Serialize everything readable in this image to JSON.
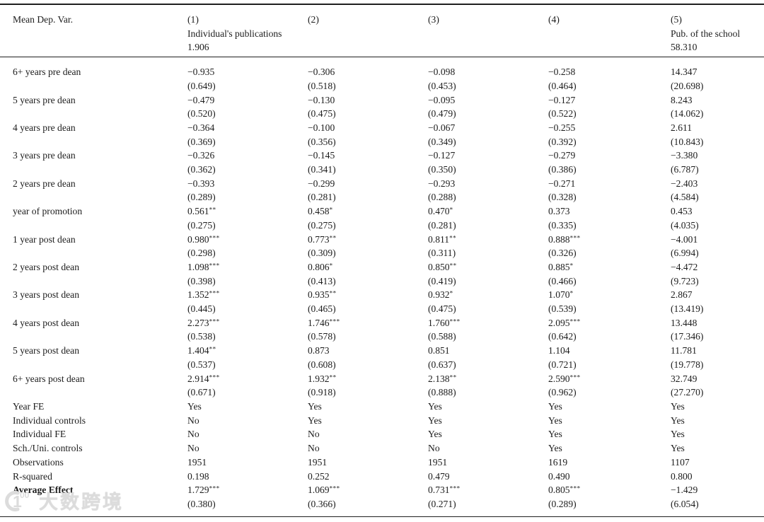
{
  "watermark": {
    "logo_digit": "1",
    "logo_zeros": "00",
    "text": "大数跨境"
  },
  "table": {
    "header": {
      "row_label": "Mean Dep. Var.",
      "columns": [
        {
          "num": "(1)",
          "dep_var": "Individual's publications",
          "mean": "1.906"
        },
        {
          "num": "(2)",
          "dep_var": "",
          "mean": ""
        },
        {
          "num": "(3)",
          "dep_var": "",
          "mean": ""
        },
        {
          "num": "(4)",
          "dep_var": "",
          "mean": ""
        },
        {
          "num": "(5)",
          "dep_var": "Pub. of the school",
          "mean": "58.310"
        }
      ]
    },
    "coef_rows": [
      {
        "label": "6+ years pre dean",
        "cells": [
          {
            "coef": "−0.935",
            "stars": "",
            "se": "(0.649)"
          },
          {
            "coef": "−0.306",
            "stars": "",
            "se": "(0.518)"
          },
          {
            "coef": "−0.098",
            "stars": "",
            "se": "(0.453)"
          },
          {
            "coef": "−0.258",
            "stars": "",
            "se": "(0.464)"
          },
          {
            "coef": "14.347",
            "stars": "",
            "se": "(20.698)"
          }
        ]
      },
      {
        "label": "5 years pre dean",
        "cells": [
          {
            "coef": "−0.479",
            "stars": "",
            "se": "(0.520)"
          },
          {
            "coef": "−0.130",
            "stars": "",
            "se": "(0.475)"
          },
          {
            "coef": "−0.095",
            "stars": "",
            "se": "(0.479)"
          },
          {
            "coef": "−0.127",
            "stars": "",
            "se": "(0.522)"
          },
          {
            "coef": "8.243",
            "stars": "",
            "se": "(14.062)"
          }
        ]
      },
      {
        "label": "4 years pre dean",
        "cells": [
          {
            "coef": "−0.364",
            "stars": "",
            "se": "(0.369)"
          },
          {
            "coef": "−0.100",
            "stars": "",
            "se": "(0.356)"
          },
          {
            "coef": "−0.067",
            "stars": "",
            "se": "(0.349)"
          },
          {
            "coef": "−0.255",
            "stars": "",
            "se": "(0.392)"
          },
          {
            "coef": "2.611",
            "stars": "",
            "se": "(10.843)"
          }
        ]
      },
      {
        "label": "3 years pre dean",
        "cells": [
          {
            "coef": "−0.326",
            "stars": "",
            "se": "(0.362)"
          },
          {
            "coef": "−0.145",
            "stars": "",
            "se": "(0.341)"
          },
          {
            "coef": "−0.127",
            "stars": "",
            "se": "(0.350)"
          },
          {
            "coef": "−0.279",
            "stars": "",
            "se": "(0.386)"
          },
          {
            "coef": "−3.380",
            "stars": "",
            "se": "(6.787)"
          }
        ]
      },
      {
        "label": "2 years pre dean",
        "cells": [
          {
            "coef": "−0.393",
            "stars": "",
            "se": "(0.289)"
          },
          {
            "coef": "−0.299",
            "stars": "",
            "se": "(0.281)"
          },
          {
            "coef": "−0.293",
            "stars": "",
            "se": "(0.288)"
          },
          {
            "coef": "−0.271",
            "stars": "",
            "se": "(0.328)"
          },
          {
            "coef": "−2.403",
            "stars": "",
            "se": "(4.584)"
          }
        ]
      },
      {
        "label": "year of promotion",
        "cells": [
          {
            "coef": "0.561",
            "stars": "**",
            "se": "(0.275)"
          },
          {
            "coef": "0.458",
            "stars": "*",
            "se": "(0.275)"
          },
          {
            "coef": "0.470",
            "stars": "*",
            "se": "(0.281)"
          },
          {
            "coef": "0.373",
            "stars": "",
            "se": "(0.335)"
          },
          {
            "coef": "0.453",
            "stars": "",
            "se": "(4.035)"
          }
        ]
      },
      {
        "label": "1 year post dean",
        "cells": [
          {
            "coef": "0.980",
            "stars": "***",
            "se": "(0.298)"
          },
          {
            "coef": "0.773",
            "stars": "**",
            "se": "(0.309)"
          },
          {
            "coef": "0.811",
            "stars": "**",
            "se": "(0.311)"
          },
          {
            "coef": "0.888",
            "stars": "***",
            "se": "(0.326)"
          },
          {
            "coef": "−4.001",
            "stars": "",
            "se": "(6.994)"
          }
        ]
      },
      {
        "label": "2 years post dean",
        "cells": [
          {
            "coef": "1.098",
            "stars": "***",
            "se": "(0.398)"
          },
          {
            "coef": "0.806",
            "stars": "*",
            "se": "(0.413)"
          },
          {
            "coef": "0.850",
            "stars": "**",
            "se": "(0.419)"
          },
          {
            "coef": "0.885",
            "stars": "*",
            "se": "(0.466)"
          },
          {
            "coef": "−4.472",
            "stars": "",
            "se": "(9.723)"
          }
        ]
      },
      {
        "label": "3 years post dean",
        "cells": [
          {
            "coef": "1.352",
            "stars": "***",
            "se": "(0.445)"
          },
          {
            "coef": "0.935",
            "stars": "**",
            "se": "(0.465)"
          },
          {
            "coef": "0.932",
            "stars": "*",
            "se": "(0.475)"
          },
          {
            "coef": "1.070",
            "stars": "*",
            "se": "(0.539)"
          },
          {
            "coef": "2.867",
            "stars": "",
            "se": "(13.419)"
          }
        ]
      },
      {
        "label": "4 years post dean",
        "cells": [
          {
            "coef": "2.273",
            "stars": "***",
            "se": "(0.538)"
          },
          {
            "coef": "1.746",
            "stars": "***",
            "se": "(0.578)"
          },
          {
            "coef": "1.760",
            "stars": "***",
            "se": "(0.588)"
          },
          {
            "coef": "2.095",
            "stars": "***",
            "se": "(0.642)"
          },
          {
            "coef": "13.448",
            "stars": "",
            "se": "(17.346)"
          }
        ]
      },
      {
        "label": "5 years post dean",
        "cells": [
          {
            "coef": "1.404",
            "stars": "**",
            "se": "(0.537)"
          },
          {
            "coef": "0.873",
            "stars": "",
            "se": "(0.608)"
          },
          {
            "coef": "0.851",
            "stars": "",
            "se": "(0.637)"
          },
          {
            "coef": "1.104",
            "stars": "",
            "se": "(0.721)"
          },
          {
            "coef": "11.781",
            "stars": "",
            "se": "(19.778)"
          }
        ]
      },
      {
        "label": "6+ years post dean",
        "cells": [
          {
            "coef": "2.914",
            "stars": "***",
            "se": "(0.671)"
          },
          {
            "coef": "1.932",
            "stars": "**",
            "se": "(0.918)"
          },
          {
            "coef": "2.138",
            "stars": "**",
            "se": "(0.888)"
          },
          {
            "coef": "2.590",
            "stars": "***",
            "se": "(0.962)"
          },
          {
            "coef": "32.749",
            "stars": "",
            "se": "(27.270)"
          }
        ]
      }
    ],
    "info_rows": [
      {
        "label": "Year FE",
        "values": [
          "Yes",
          "Yes",
          "Yes",
          "Yes",
          "Yes"
        ]
      },
      {
        "label": "Individual controls",
        "values": [
          "No",
          "Yes",
          "Yes",
          "Yes",
          "Yes"
        ]
      },
      {
        "label": "Individual FE",
        "values": [
          "No",
          "No",
          "Yes",
          "Yes",
          "Yes"
        ]
      },
      {
        "label": "Sch./Uni. controls",
        "values": [
          "No",
          "No",
          "No",
          "Yes",
          "Yes"
        ]
      },
      {
        "label": "Observations",
        "values": [
          "1951",
          "1951",
          "1951",
          "1619",
          "1107"
        ]
      },
      {
        "label": "R-squared",
        "values": [
          "0.198",
          "0.252",
          "0.479",
          "0.490",
          "0.800"
        ]
      }
    ],
    "avg_row": {
      "label": "Average Effect",
      "cells": [
        {
          "coef": "1.729",
          "stars": "***",
          "se": "(0.380)"
        },
        {
          "coef": "1.069",
          "stars": "***",
          "se": "(0.366)"
        },
        {
          "coef": "0.731",
          "stars": "***",
          "se": "(0.271)"
        },
        {
          "coef": "0.805",
          "stars": "***",
          "se": "(0.289)"
        },
        {
          "coef": "−1.429",
          "stars": "",
          "se": "(6.054)"
        }
      ]
    }
  }
}
